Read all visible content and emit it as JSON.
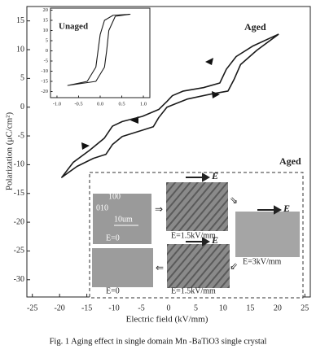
{
  "chart_data": [
    {
      "type": "line",
      "x_label": "Electric field (kV/mm)",
      "y_label": "Polarization (μC/cm²)",
      "annotations": [
        "Aged"
      ],
      "color": "#1a1a1a",
      "xlim": [
        -26,
        26
      ],
      "ylim": [
        -33,
        17.5
      ],
      "xticks": [
        -25,
        -20,
        -15,
        -10,
        -5,
        0,
        5,
        10,
        15,
        20,
        25
      ],
      "yticks": [
        -30,
        -25,
        -20,
        -15,
        -10,
        -5,
        0,
        5,
        10,
        15
      ],
      "x": [
        20.2,
        15.4,
        12.4,
        10.6,
        9.4,
        6.4,
        2.7,
        0.7,
        -0.3,
        -1.8,
        -4.8,
        -8.5,
        -10.3,
        -11.8,
        -14.5,
        -17.5,
        -19.6,
        -16.8,
        -13.8,
        -11.5,
        -10.3,
        -8.5,
        -4.8,
        -2.8,
        -1.8,
        -0.3,
        3.4,
        7.9,
        10.9,
        12,
        13.2,
        16.2,
        20.2
      ],
      "values": [
        12.7,
        10.6,
        8.8,
        6.6,
        4.2,
        3.4,
        2.8,
        2,
        1,
        -0.4,
        -1.6,
        -2.5,
        -3.3,
        -5.4,
        -7.5,
        -9.6,
        -12.2,
        -10.3,
        -8.9,
        -8.2,
        -6.5,
        -5.1,
        -4,
        -3.4,
        -1.8,
        0,
        1.4,
        2.3,
        2.8,
        4.8,
        7.4,
        9.9,
        12.7
      ]
    },
    {
      "type": "line",
      "annotations": [
        "Unaged"
      ],
      "color": "#1a1a1a",
      "xlim": [
        -1.15,
        1.15
      ],
      "ylim": [
        -23,
        21
      ],
      "xticks": [
        {
          "value": -1.0,
          "label": "-1.0"
        },
        -0.5,
        {
          "value": 0,
          "label": "0.0"
        },
        0.5,
        {
          "value": 1.0,
          "label": "1.0"
        }
      ],
      "yticks": [
        -20,
        -15,
        -10,
        -5,
        0,
        5,
        10,
        15,
        20
      ],
      "x": [
        0.7,
        0.3,
        0.1,
        0,
        -0.05,
        -0.1,
        -0.3,
        -0.75,
        -0.1,
        0.1,
        0.15,
        0.2,
        0.35,
        0.7
      ],
      "values": [
        18,
        17.5,
        15,
        8,
        0,
        -8,
        -15,
        -17,
        -15,
        -8,
        0,
        10,
        17,
        18
      ]
    }
  ],
  "domain_images": {
    "title": "Aged",
    "orientation": [
      "100",
      "010"
    ],
    "scale_bar": "10um",
    "labels": [
      "E=0",
      "E=1.5kV/mm",
      "E=3kV/mm",
      "E=1.5kV/mm",
      "E=0"
    ],
    "field_symbol": [
      "E",
      "E",
      "E"
    ]
  },
  "caption": "Fig. 1 Aging effect in single domain Mn -BaTiO3 single crystal"
}
